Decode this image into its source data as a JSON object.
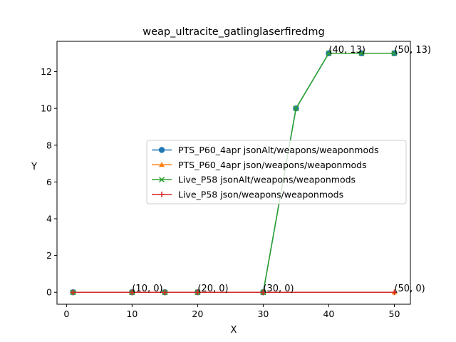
{
  "chart_data": {
    "type": "line",
    "title": "weap_ultracite_gatlinglaserfiredmg",
    "xlabel": "X",
    "ylabel": "Y",
    "xlim": [
      -1.45,
      52.45
    ],
    "ylim": [
      -0.65,
      13.65
    ],
    "xticks": [
      0,
      10,
      20,
      30,
      40,
      50
    ],
    "yticks": [
      0,
      2,
      4,
      6,
      8,
      10,
      12
    ],
    "grid": false,
    "legend_position": "center-right",
    "series": [
      {
        "name": "PTS_P60_4apr jsonAlt/weapons/weaponmods",
        "color": "#1f77b4",
        "marker": "circle",
        "x": [
          1,
          10,
          15,
          20,
          30,
          35,
          40,
          45,
          50
        ],
        "y": [
          0,
          0,
          0,
          0,
          0,
          10,
          13,
          13,
          13
        ]
      },
      {
        "name": "PTS_P60_4apr json/weapons/weaponmods",
        "color": "#ff7f0e",
        "marker": "triangle",
        "x": [
          1,
          10,
          15,
          20,
          30,
          50
        ],
        "y": [
          0,
          0,
          0,
          0,
          0,
          0
        ]
      },
      {
        "name": "Live_P58 jsonAlt/weapons/weaponmods",
        "color": "#2ca02c",
        "marker": "x",
        "x": [
          1,
          10,
          15,
          20,
          30,
          35,
          40,
          45,
          50
        ],
        "y": [
          0,
          0,
          0,
          0,
          0,
          10,
          13,
          13,
          13
        ]
      },
      {
        "name": "Live_P58 json/weapons/weaponmods",
        "color": "#d62728",
        "marker": "plus",
        "x": [
          1,
          10,
          15,
          20,
          30,
          50
        ],
        "y": [
          0,
          0,
          0,
          0,
          0,
          0
        ]
      }
    ],
    "annotations": [
      {
        "text": "(10, 0)",
        "x": 10,
        "y": 0
      },
      {
        "text": "(20, 0)",
        "x": 20,
        "y": 0
      },
      {
        "text": "(30, 0)",
        "x": 30,
        "y": 0
      },
      {
        "text": "(40, 13)",
        "x": 40,
        "y": 13
      },
      {
        "text": "(50, 13)",
        "x": 50,
        "y": 13
      },
      {
        "text": "(50, 0)",
        "x": 50,
        "y": 0
      }
    ]
  }
}
